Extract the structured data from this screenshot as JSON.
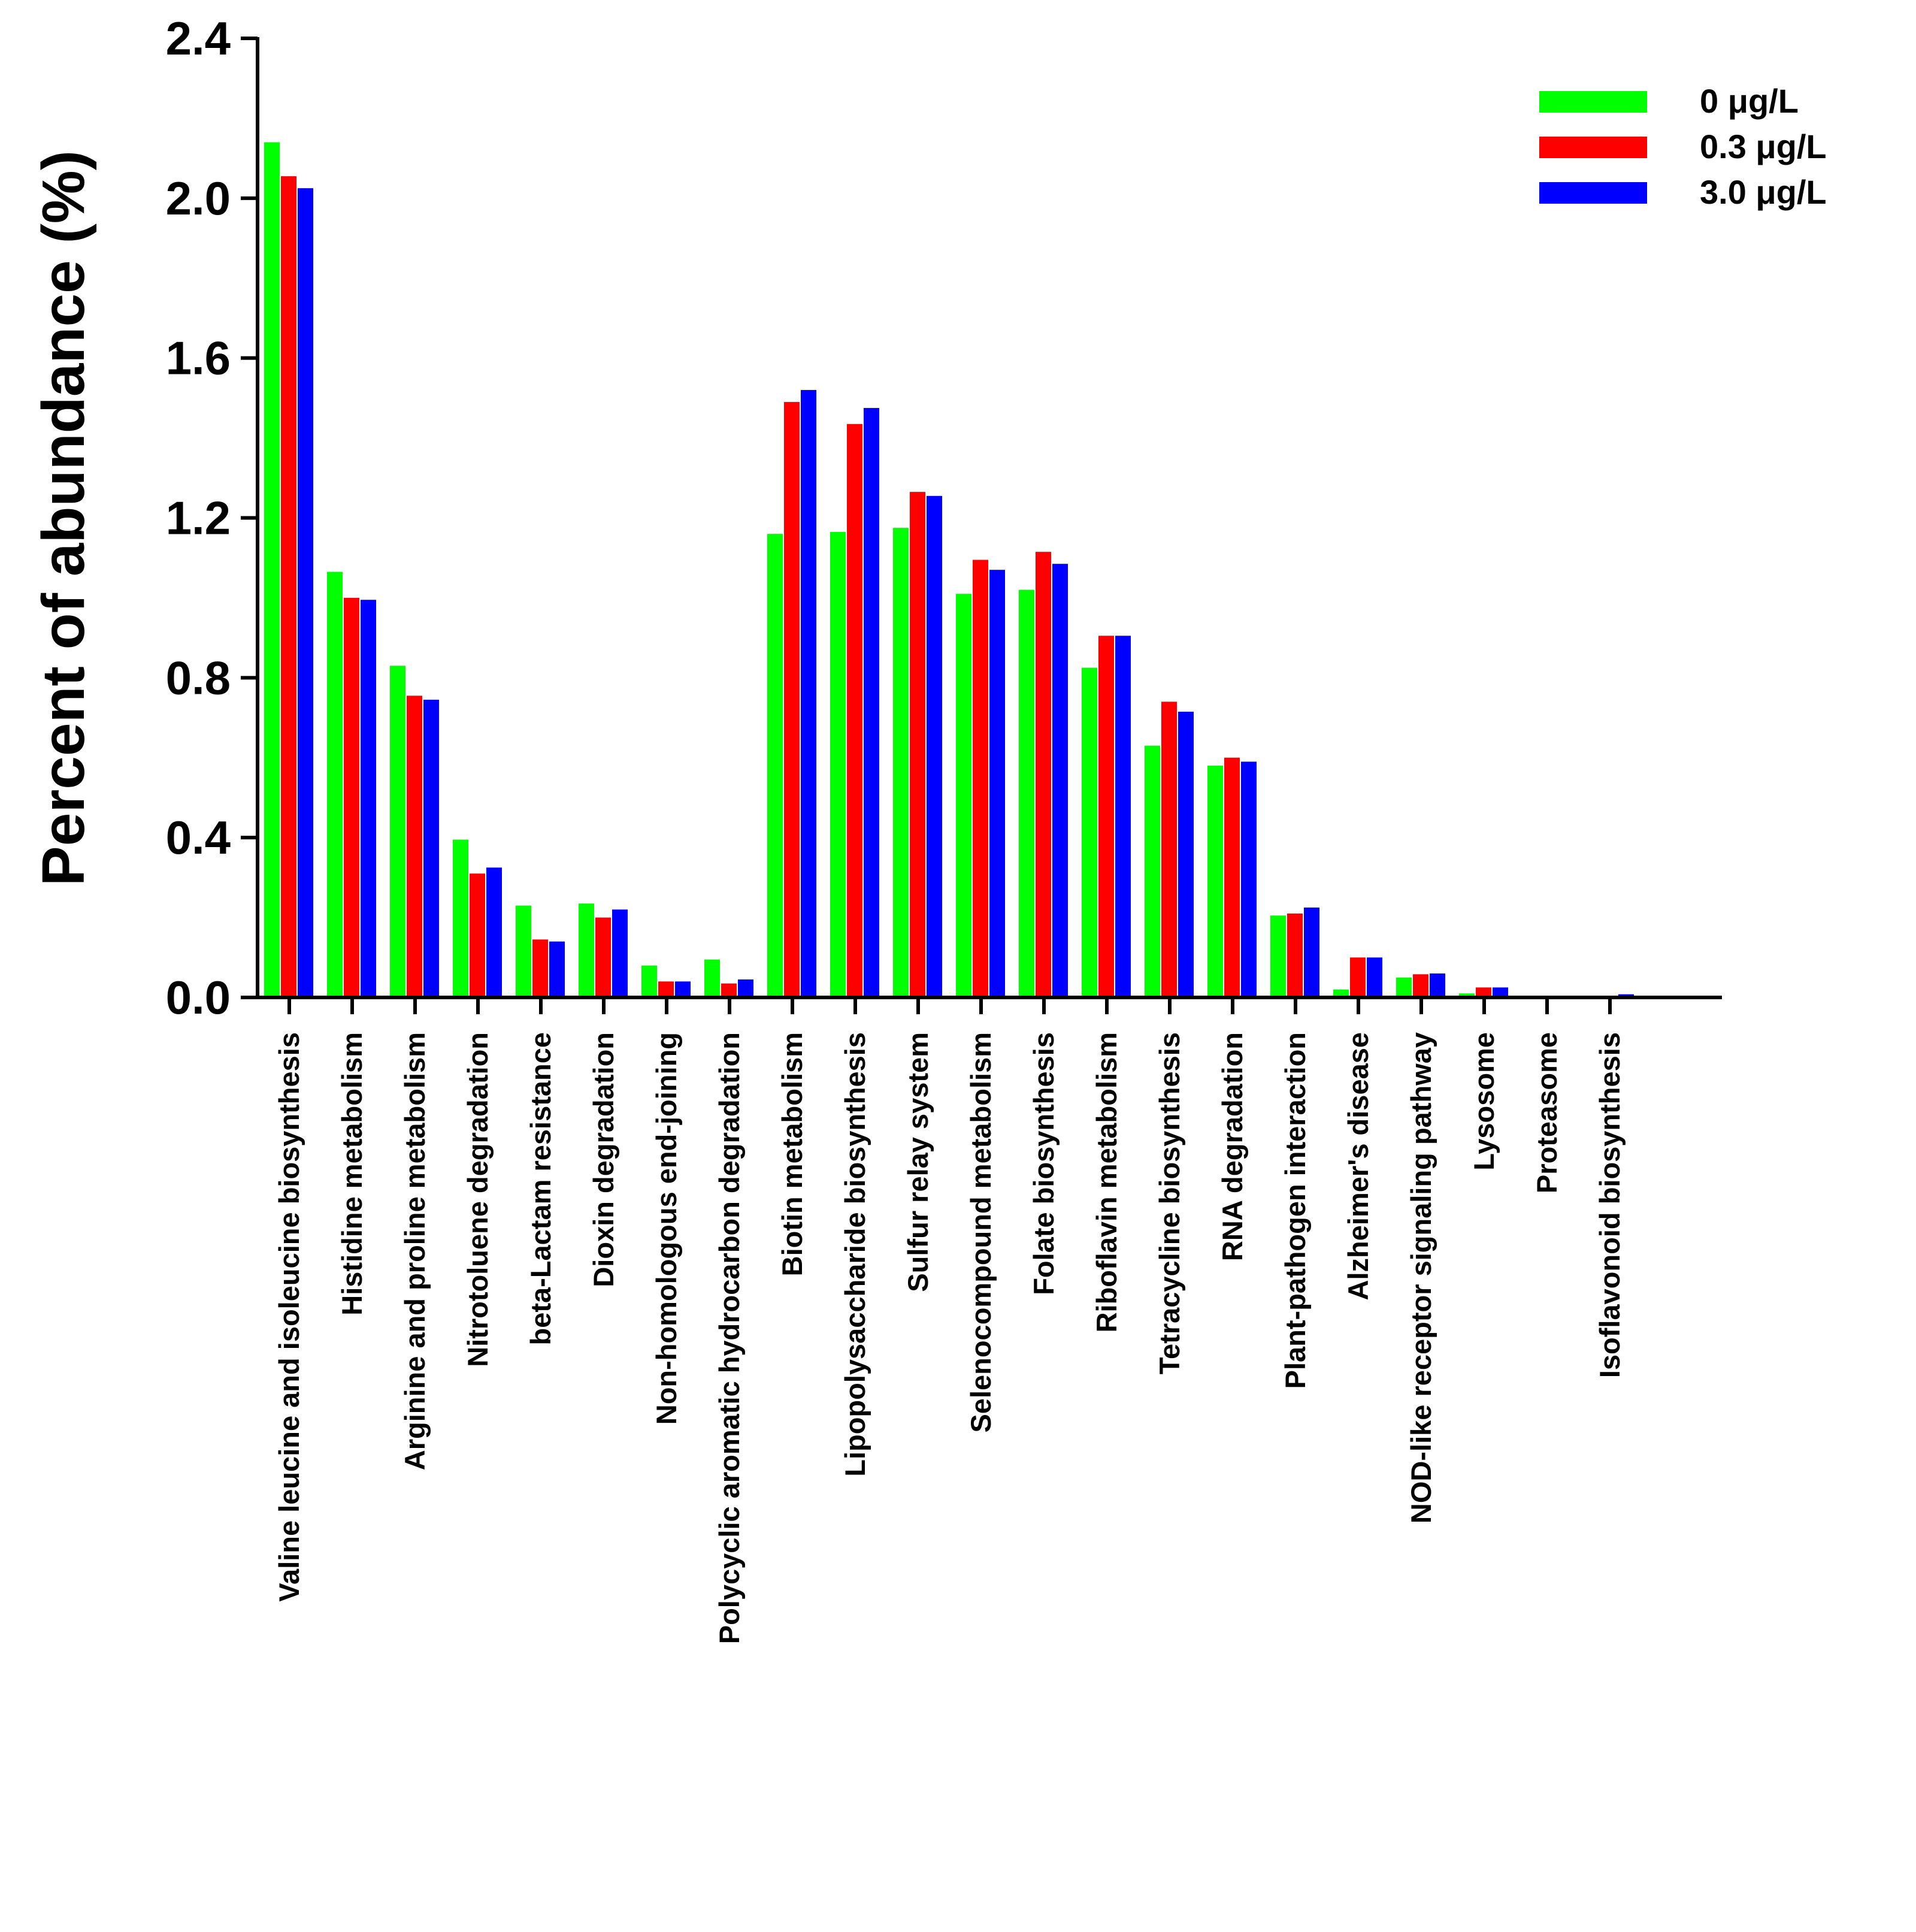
{
  "chart_data": {
    "type": "bar",
    "title": "",
    "xlabel": "",
    "ylabel": "Percent of abundance (%)",
    "ylim": [
      0,
      2.4
    ],
    "yticks": [
      "0.0",
      "0.4",
      "0.8",
      "1.2",
      "1.6",
      "2.0",
      "2.4"
    ],
    "legend_position": "top-right",
    "categories": [
      "Valine leucine and isoleucine biosynthesis",
      "Histidine metabolism",
      "Arginine and proline metabolism",
      "Nitrotoluene degradation",
      "beta-Lactam resistance",
      "Dioxin degradation",
      "Non-homologous end-joining",
      "Polycyclic aromatic hydrocarbon degradation",
      "Biotin metabolism",
      "Lipopolysaccharide biosynthesis",
      "Sulfur relay system",
      "Selenocompound metabolism",
      "Folate biosynthesis",
      "Riboflavin metabolism",
      "Tetracycline biosynthesis",
      "RNA degradation",
      "Plant-pathogen interaction",
      "Alzheimer's disease",
      "NOD-like receptor signaling pathway",
      "Lysosome",
      "Proteasome",
      "Isoflavonoid biosynthesis"
    ],
    "series": [
      {
        "name": "0 μg/L",
        "color": "#00ff00",
        "values": [
          2.14,
          1.065,
          0.83,
          0.395,
          0.23,
          0.235,
          0.08,
          0.095,
          1.16,
          1.165,
          1.175,
          1.01,
          1.02,
          0.825,
          0.63,
          0.58,
          0.205,
          0.02,
          0.05,
          0.01,
          0.002,
          0.001
        ]
      },
      {
        "name": "0.3 μg/L",
        "color": "#ff0000",
        "values": [
          2.055,
          1.0,
          0.755,
          0.31,
          0.145,
          0.2,
          0.04,
          0.035,
          1.49,
          1.435,
          1.265,
          1.095,
          1.115,
          0.905,
          0.74,
          0.6,
          0.21,
          0.1,
          0.058,
          0.025,
          0.002,
          0.003
        ]
      },
      {
        "name": "3.0 μg/L",
        "color": "#0000ff",
        "values": [
          2.025,
          0.995,
          0.745,
          0.325,
          0.14,
          0.22,
          0.04,
          0.045,
          1.52,
          1.475,
          1.255,
          1.07,
          1.085,
          0.905,
          0.715,
          0.59,
          0.225,
          0.1,
          0.06,
          0.025,
          0.002,
          0.008
        ]
      }
    ]
  }
}
